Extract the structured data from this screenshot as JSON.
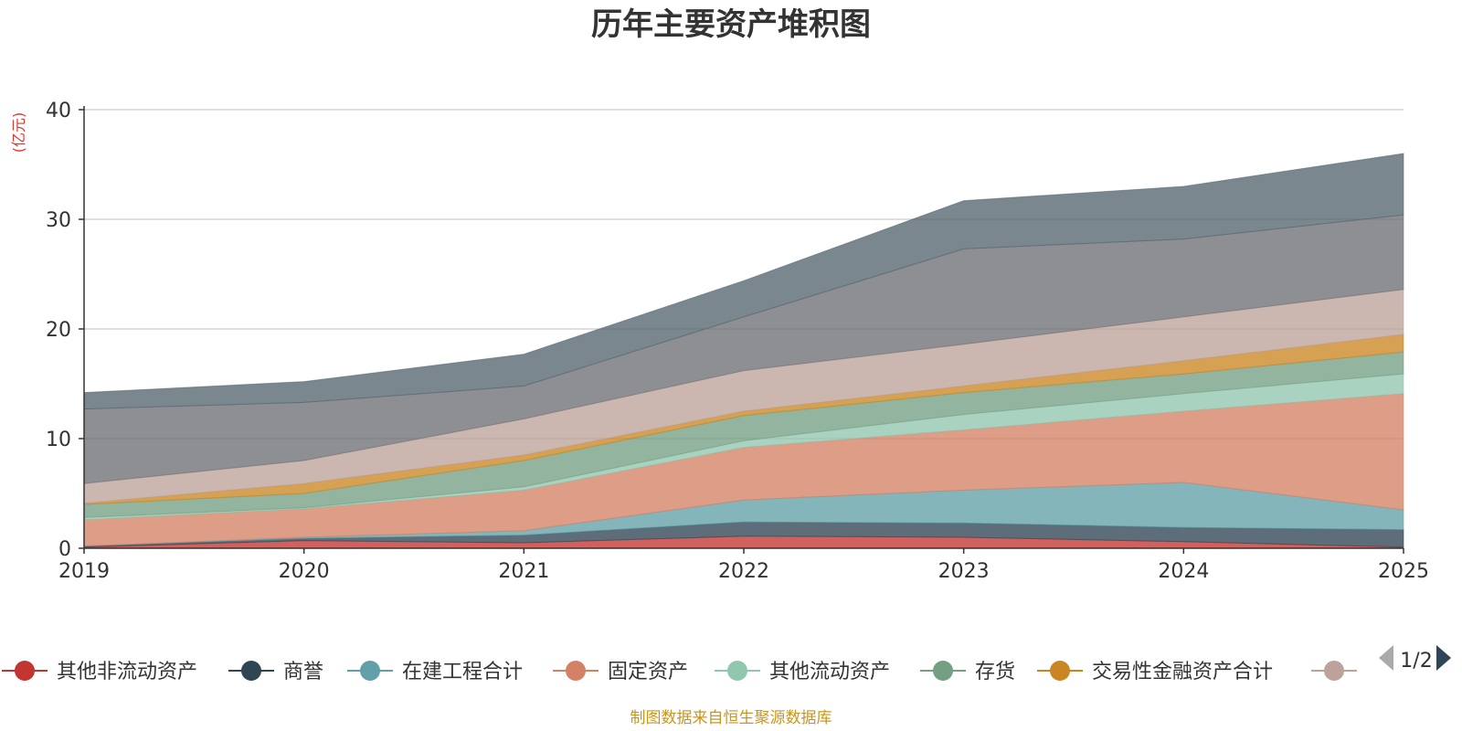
{
  "chart_data": {
    "type": "area",
    "stacked": true,
    "title": "历年主要资产堆积图",
    "unit_label": "(亿元)",
    "x": [
      "2019",
      "2020",
      "2021",
      "2022",
      "2023",
      "2024",
      "2025"
    ],
    "ylim": [
      0,
      40
    ],
    "yticks": [
      "0",
      "10",
      "20",
      "30",
      "40"
    ],
    "grid": true,
    "series": [
      {
        "name": "其他非流动资产",
        "color": "#c23531",
        "values": [
          0.1,
          0.7,
          0.5,
          1.1,
          1.0,
          0.6,
          0.1
        ]
      },
      {
        "name": "商誉",
        "color": "#2f4554",
        "values": [
          0.1,
          0.2,
          0.7,
          1.3,
          1.3,
          1.3,
          1.6
        ]
      },
      {
        "name": "在建工程合计",
        "color": "#61a0a8",
        "values": [
          0.0,
          0.1,
          0.4,
          2.0,
          3.0,
          4.1,
          1.8
        ]
      },
      {
        "name": "固定资产",
        "color": "#d48265",
        "values": [
          2.4,
          2.6,
          3.7,
          4.8,
          5.5,
          6.5,
          10.6
        ]
      },
      {
        "name": "其他流动资产",
        "color": "#91c7ae",
        "values": [
          0.2,
          0.1,
          0.3,
          0.6,
          1.4,
          1.6,
          1.8
        ]
      },
      {
        "name": "存货",
        "color": "#749f83",
        "values": [
          1.2,
          1.3,
          2.4,
          2.3,
          2.0,
          1.8,
          2.0
        ]
      },
      {
        "name": "交易性金融资产合计",
        "color": "#ca8622",
        "values": [
          0.1,
          0.9,
          0.5,
          0.4,
          0.6,
          1.2,
          1.6
        ]
      },
      {
        "name": "",
        "color": "#bda29a",
        "values": [
          1.8,
          2.1,
          3.3,
          3.7,
          3.8,
          4.0,
          4.1
        ]
      },
      {
        "name": "",
        "color": "#6e7074",
        "values": [
          6.8,
          5.3,
          3.0,
          4.9,
          8.7,
          7.1,
          6.8
        ]
      },
      {
        "name": "",
        "color": "#546570",
        "values": [
          1.5,
          1.9,
          2.9,
          3.3,
          4.4,
          4.8,
          5.6
        ]
      }
    ],
    "legend_position": "bottom"
  },
  "legend": {
    "page_indicator": "1/2"
  },
  "footer": {
    "source": "制图数据来自恒生聚源数据库"
  }
}
